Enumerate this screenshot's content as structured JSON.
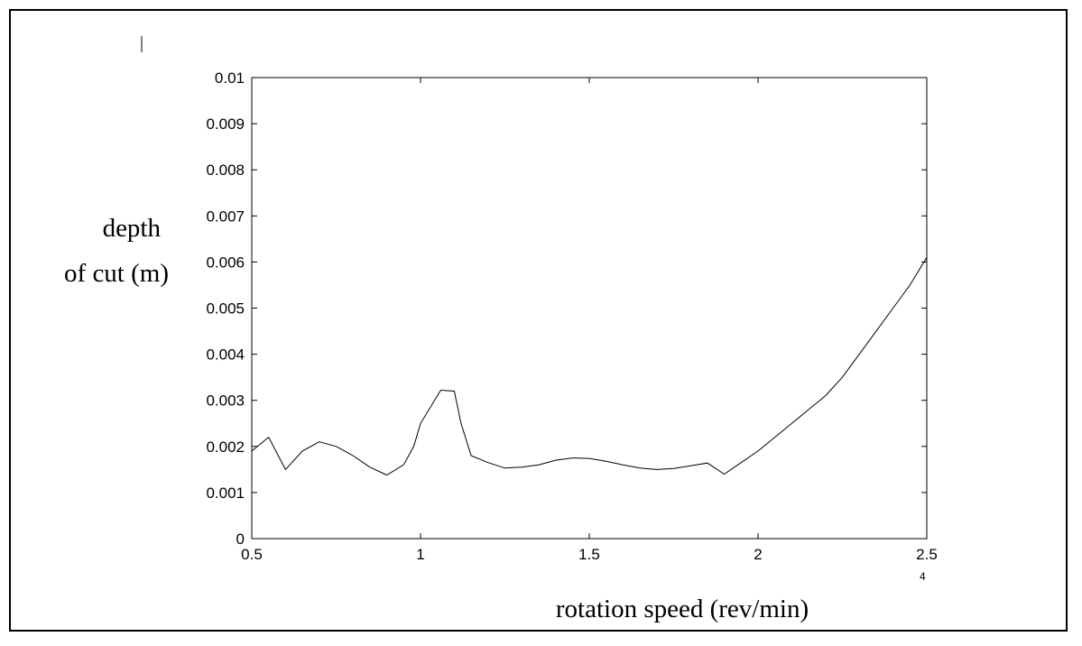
{
  "chart_data": {
    "type": "line",
    "title": "",
    "ylabel_line1": "depth",
    "ylabel_line2": "of cut (m)",
    "xlabel": "rotation speed (rev/min)",
    "x_exponent": "4",
    "xlim": [
      0.5,
      2.5
    ],
    "ylim": [
      0,
      0.01
    ],
    "xticks": [
      "0.5",
      "1",
      "1.5",
      "2",
      "2.5"
    ],
    "xtick_values": [
      0.5,
      1,
      1.5,
      2,
      2.5
    ],
    "yticks": [
      "0",
      "0.001",
      "0.002",
      "0.003",
      "0.004",
      "0.005",
      "0.006",
      "0.007",
      "0.008",
      "0.009",
      "0.01"
    ],
    "ytick_values": [
      0,
      0.001,
      0.002,
      0.003,
      0.004,
      0.005,
      0.006,
      0.007,
      0.008,
      0.009,
      0.01
    ],
    "grid": false,
    "series": [
      {
        "x": [
          0.5,
          0.55,
          0.6,
          0.65,
          0.7,
          0.75,
          0.8,
          0.85,
          0.9,
          0.95,
          0.98,
          1.0,
          1.05,
          1.06,
          1.1,
          1.12,
          1.15,
          1.2,
          1.25,
          1.3,
          1.35,
          1.4,
          1.45,
          1.5,
          1.55,
          1.6,
          1.65,
          1.7,
          1.75,
          1.8,
          1.85,
          1.9,
          1.95,
          2.0,
          2.05,
          2.1,
          2.15,
          2.2,
          2.25,
          2.3,
          2.35,
          2.4,
          2.45,
          2.5
        ],
        "y": [
          0.0019,
          0.0022,
          0.0015,
          0.0019,
          0.0021,
          0.002,
          0.0018,
          0.00155,
          0.00138,
          0.0016,
          0.002,
          0.0025,
          0.0031,
          0.00322,
          0.0032,
          0.0025,
          0.0018,
          0.00165,
          0.00153,
          0.00155,
          0.0016,
          0.0017,
          0.00175,
          0.00174,
          0.00168,
          0.0016,
          0.00153,
          0.0015,
          0.00152,
          0.00158,
          0.00164,
          0.0014,
          0.00165,
          0.0019,
          0.0022,
          0.0025,
          0.0028,
          0.0031,
          0.0035,
          0.004,
          0.0045,
          0.005,
          0.0055,
          0.0061
        ]
      }
    ]
  }
}
